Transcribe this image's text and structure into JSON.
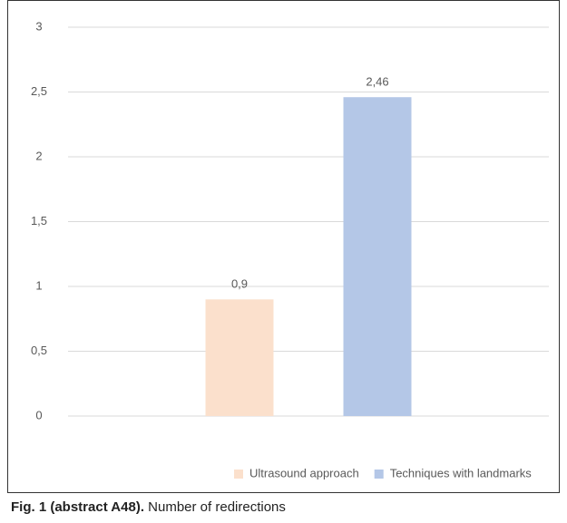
{
  "chart_data": {
    "type": "bar",
    "categories": [
      null
    ],
    "series": [
      {
        "name": "Ultrasound approach",
        "color": "#fbe0cc",
        "values": [
          0.9
        ],
        "value_labels": [
          "0,9"
        ]
      },
      {
        "name": "Techniques with landmarks",
        "color": "#b4c7e7",
        "values": [
          2.46
        ],
        "value_labels": [
          "2,46"
        ]
      }
    ],
    "ylim": [
      0,
      3
    ],
    "yticks": [
      0,
      {
        "value": 0.5,
        "label": "0,5"
      },
      1,
      {
        "value": 1.5,
        "label": "1,5"
      },
      2,
      {
        "value": 2.5,
        "label": "2,5"
      },
      3
    ],
    "grid": true,
    "legend": "bottom"
  },
  "caption": {
    "label": "Fig. 1 (abstract A48).",
    "text": "Number of redirections"
  }
}
